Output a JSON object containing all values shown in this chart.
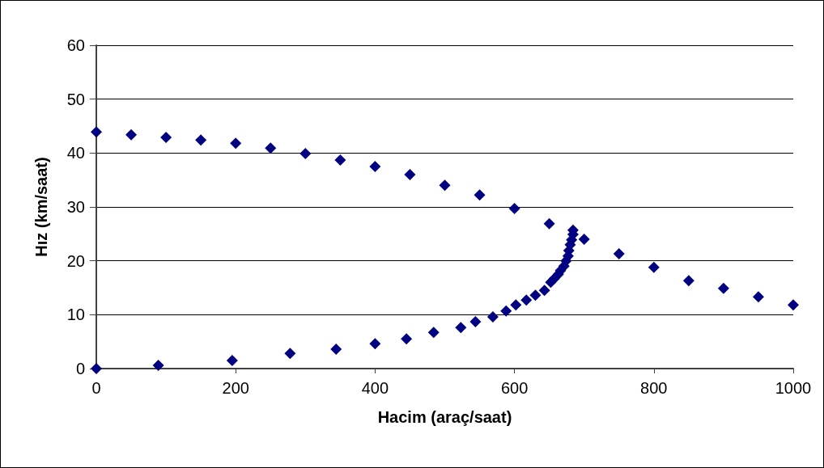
{
  "chart_data": {
    "type": "scatter",
    "xlabel": "Hacim (araç/saat)",
    "ylabel": "Hız (km/saat)",
    "marker": "diamond",
    "grid": "y",
    "xlim": [
      0,
      1000
    ],
    "xticks": [
      0,
      200,
      400,
      600,
      800,
      1000
    ],
    "ylim": [
      0,
      60
    ],
    "yticks": [
      0,
      10,
      20,
      30,
      40,
      50,
      60
    ],
    "series": [
      {
        "color": "#000080",
        "x": [
          0,
          50,
          100,
          150,
          200,
          250,
          300,
          350,
          400,
          450,
          500,
          550,
          600,
          650,
          700,
          750,
          800,
          850,
          900,
          950,
          1000,
          0,
          89,
          195,
          278,
          344,
          400,
          445,
          484,
          523,
          544,
          569,
          588,
          602,
          617,
          630,
          643,
          652,
          657,
          663,
          666,
          671,
          674,
          677,
          678,
          680,
          682,
          684,
          684
        ],
        "values": [
          43.9,
          43.4,
          42.9,
          42.4,
          41.8,
          40.9,
          39.9,
          38.7,
          37.5,
          36.0,
          34.0,
          32.2,
          29.7,
          26.9,
          24.0,
          21.3,
          18.8,
          16.3,
          14.9,
          13.3,
          11.8,
          0,
          0.6,
          1.5,
          2.8,
          3.6,
          4.6,
          5.5,
          6.7,
          7.6,
          8.7,
          9.6,
          10.7,
          11.8,
          12.7,
          13.6,
          14.5,
          16.0,
          16.7,
          17.5,
          18.2,
          19.0,
          20.0,
          20.9,
          21.9,
          23.0,
          23.9,
          24.9,
          25.7
        ]
      }
    ]
  }
}
